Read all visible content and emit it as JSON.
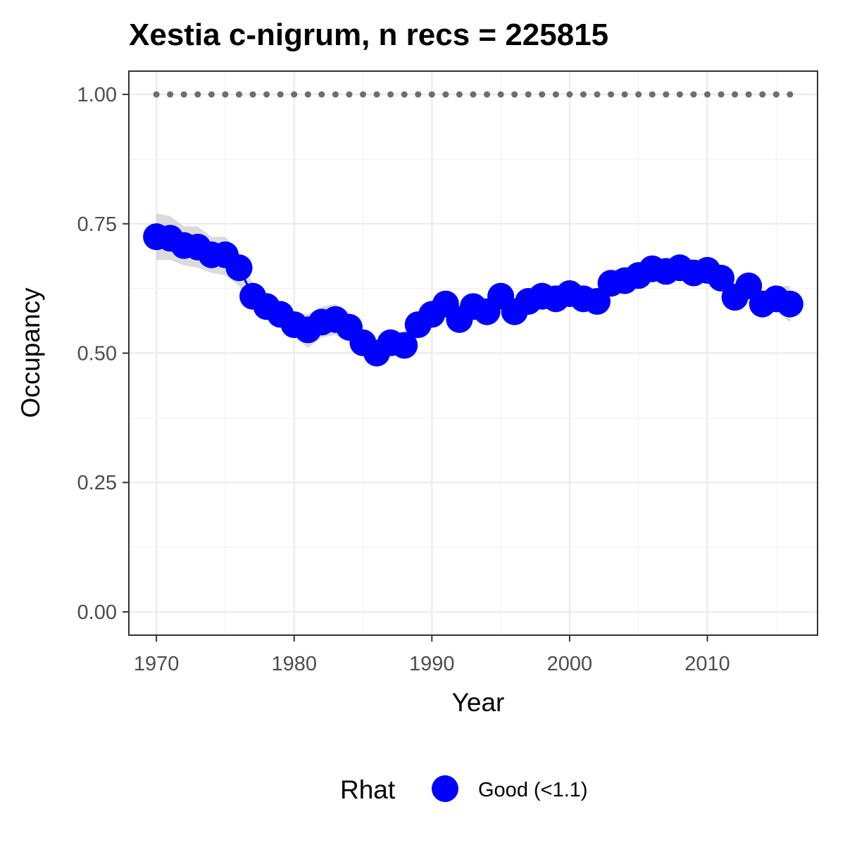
{
  "chart_data": {
    "type": "line",
    "title": "Xestia c-nigrum, n recs = 225815",
    "xlabel": "Year",
    "ylabel": "Occupancy",
    "xlim": [
      1968,
      2018
    ],
    "ylim": [
      -0.045,
      1.045
    ],
    "x_ticks": [
      1970,
      1980,
      1990,
      2000,
      2010
    ],
    "x_tick_labels": [
      "1970",
      "1980",
      "1990",
      "2000",
      "2010"
    ],
    "y_ticks": [
      0,
      0.25,
      0.5,
      0.75,
      1.0
    ],
    "y_tick_labels": [
      "0.00",
      "0.25",
      "0.50",
      "0.75",
      "1.00"
    ],
    "grid": true,
    "legend": {
      "title": "Rhat",
      "placement": "bottom",
      "entries": [
        {
          "label": "Good (<1.1)",
          "color": "#0000ff"
        }
      ]
    },
    "series": [
      {
        "name": "Good (<1.1)",
        "kind": "points-line",
        "color": "#0000ff",
        "x": [
          1970,
          1971,
          1972,
          1973,
          1974,
          1975,
          1976,
          1977,
          1978,
          1979,
          1980,
          1981,
          1982,
          1983,
          1984,
          1985,
          1986,
          1987,
          1988,
          1989,
          1990,
          1991,
          1992,
          1993,
          1994,
          1995,
          1996,
          1997,
          1998,
          1999,
          2000,
          2001,
          2002,
          2003,
          2004,
          2005,
          2006,
          2007,
          2008,
          2009,
          2010,
          2011,
          2012,
          2013,
          2014,
          2015,
          2016
        ],
        "y": [
          0.725,
          0.722,
          0.708,
          0.705,
          0.69,
          0.69,
          0.665,
          0.61,
          0.59,
          0.575,
          0.555,
          0.545,
          0.56,
          0.565,
          0.55,
          0.52,
          0.5,
          0.52,
          0.515,
          0.555,
          0.575,
          0.595,
          0.565,
          0.59,
          0.58,
          0.61,
          0.58,
          0.6,
          0.61,
          0.605,
          0.615,
          0.605,
          0.6,
          0.635,
          0.64,
          0.65,
          0.663,
          0.658,
          0.665,
          0.655,
          0.66,
          0.645,
          0.608,
          0.63,
          0.595,
          0.605,
          0.595
        ],
        "lower": [
          0.68,
          0.68,
          0.67,
          0.665,
          0.655,
          0.65,
          0.63,
          0.585,
          0.565,
          0.55,
          0.53,
          0.51,
          0.53,
          0.535,
          0.52,
          0.495,
          0.475,
          0.495,
          0.495,
          0.53,
          0.55,
          0.57,
          0.545,
          0.565,
          0.56,
          0.585,
          0.56,
          0.58,
          0.59,
          0.585,
          0.595,
          0.585,
          0.58,
          0.615,
          0.62,
          0.63,
          0.64,
          0.635,
          0.645,
          0.635,
          0.64,
          0.625,
          0.585,
          0.61,
          0.575,
          0.58,
          0.56
        ],
        "upper": [
          0.77,
          0.765,
          0.745,
          0.745,
          0.725,
          0.725,
          0.695,
          0.635,
          0.615,
          0.6,
          0.58,
          0.575,
          0.59,
          0.595,
          0.58,
          0.545,
          0.525,
          0.545,
          0.54,
          0.58,
          0.6,
          0.62,
          0.59,
          0.615,
          0.605,
          0.635,
          0.605,
          0.625,
          0.635,
          0.63,
          0.64,
          0.63,
          0.625,
          0.66,
          0.665,
          0.675,
          0.685,
          0.68,
          0.69,
          0.68,
          0.685,
          0.67,
          0.635,
          0.655,
          0.62,
          0.63,
          0.63
        ]
      },
      {
        "name": "",
        "kind": "dotted-reference",
        "color": "#6e6e6e",
        "x": [
          1970,
          1971,
          1972,
          1973,
          1974,
          1975,
          1976,
          1977,
          1978,
          1979,
          1980,
          1981,
          1982,
          1983,
          1984,
          1985,
          1986,
          1987,
          1988,
          1989,
          1990,
          1991,
          1992,
          1993,
          1994,
          1995,
          1996,
          1997,
          1998,
          1999,
          2000,
          2001,
          2002,
          2003,
          2004,
          2005,
          2006,
          2007,
          2008,
          2009,
          2010,
          2011,
          2012,
          2013,
          2014,
          2015,
          2016
        ],
        "y": [
          1,
          1,
          1,
          1,
          1,
          1,
          1,
          1,
          1,
          1,
          1,
          1,
          1,
          1,
          1,
          1,
          1,
          1,
          1,
          1,
          1,
          1,
          1,
          1,
          1,
          1,
          1,
          1,
          1,
          1,
          1,
          1,
          1,
          1,
          1,
          1,
          1,
          1,
          1,
          1,
          1,
          1,
          1,
          1,
          1,
          1,
          1
        ]
      }
    ]
  }
}
